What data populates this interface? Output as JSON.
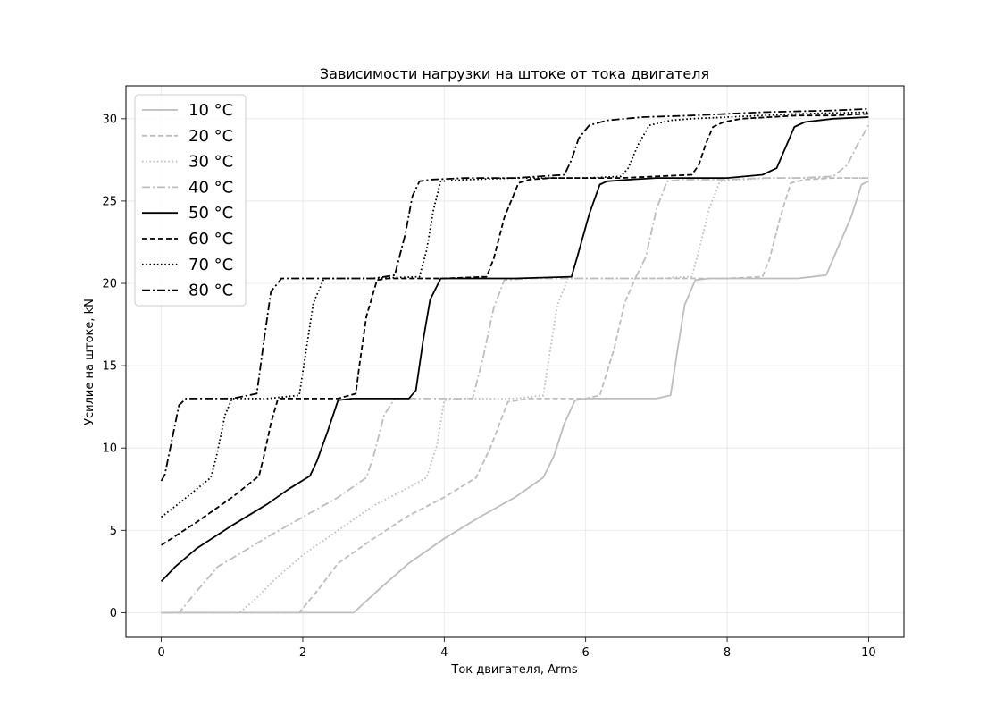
{
  "chart_data": {
    "type": "line",
    "title": "Зависимости нагрузки на штоке от тока двигателя",
    "xlabel": "Ток двигателя, Arms",
    "ylabel": "Усилие на штоке, kN",
    "xlim": [
      -0.5,
      10.5
    ],
    "ylim": [
      -1.5,
      32
    ],
    "xticks": [
      0,
      2,
      4,
      6,
      8,
      10
    ],
    "yticks": [
      0,
      5,
      10,
      15,
      20,
      25,
      30
    ],
    "grid": true,
    "legend_position": "upper-left",
    "series": [
      {
        "name": "10 °C",
        "color": "#bdbdbd",
        "dash": "solid",
        "x": [
          0,
          2.72,
          3.1,
          3.5,
          4.0,
          4.5,
          5.0,
          5.4,
          5.55,
          5.7,
          5.85,
          6.0,
          6.5,
          7.0,
          7.2,
          7.3,
          7.4,
          7.55,
          7.75,
          8.0,
          8.5,
          9.0,
          9.4,
          9.6,
          9.75,
          9.9,
          10.0
        ],
        "y": [
          0,
          0,
          1.5,
          3.0,
          4.5,
          5.8,
          7.0,
          8.2,
          9.5,
          11.5,
          12.9,
          13.0,
          13.0,
          13.0,
          13.2,
          16.0,
          18.7,
          20.2,
          20.3,
          20.3,
          20.3,
          20.3,
          20.5,
          22.5,
          24.0,
          26.0,
          26.2
        ]
      },
      {
        "name": "20 °C",
        "color": "#bdbdbd",
        "dash": "dashed",
        "x": [
          0,
          1.95,
          2.2,
          2.5,
          3.0,
          3.5,
          4.0,
          4.45,
          4.65,
          4.9,
          5.2,
          5.5,
          6.0,
          6.2,
          6.4,
          6.55,
          6.7,
          7.0,
          7.5,
          8.0,
          8.5,
          8.6,
          8.75,
          8.9,
          9.1,
          9.5,
          9.8,
          10.0
        ],
        "y": [
          0,
          0,
          1.3,
          3.0,
          4.5,
          5.9,
          7.0,
          8.2,
          10.0,
          12.8,
          13.0,
          13.0,
          13.0,
          13.2,
          16.0,
          18.8,
          20.3,
          20.3,
          20.3,
          20.3,
          20.4,
          21.5,
          24.0,
          26.1,
          26.3,
          26.4,
          26.4,
          26.4
        ]
      },
      {
        "name": "30 °C",
        "color": "#bdbdbd",
        "dash": "dotted",
        "x": [
          0,
          1.1,
          1.3,
          1.6,
          2.0,
          2.5,
          3.0,
          3.5,
          3.75,
          3.9,
          4.0,
          4.3,
          5.0,
          5.4,
          5.5,
          5.6,
          5.75,
          6.0,
          6.5,
          7.0,
          7.5,
          7.6,
          7.75,
          7.9,
          8.2,
          8.6,
          9.0,
          9.5,
          10.0
        ],
        "y": [
          0,
          0,
          0.7,
          2.0,
          3.5,
          5.0,
          6.5,
          7.6,
          8.2,
          10.2,
          12.9,
          13.0,
          13.0,
          13.2,
          16.0,
          18.7,
          20.3,
          20.3,
          20.3,
          20.3,
          20.4,
          22.0,
          24.6,
          26.2,
          26.3,
          26.4,
          26.4,
          26.4,
          26.4
        ]
      },
      {
        "name": "40 °C",
        "color": "#bdbdbd",
        "dash": "dashdot",
        "x": [
          0,
          0.25,
          0.5,
          0.8,
          1.0,
          1.5,
          2.0,
          2.5,
          2.9,
          3.0,
          3.15,
          3.3,
          3.6,
          4.4,
          4.55,
          4.7,
          4.85,
          5.2,
          6.0,
          6.7,
          6.85,
          7.0,
          7.15,
          7.35,
          7.6,
          8.0,
          8.5,
          9.0,
          9.5,
          9.7,
          9.85,
          10.0
        ],
        "y": [
          0,
          0,
          1.3,
          2.8,
          3.3,
          4.6,
          5.8,
          7.0,
          8.2,
          9.5,
          12.0,
          13.0,
          13.0,
          13.0,
          15.5,
          18.5,
          20.2,
          20.3,
          20.3,
          20.3,
          21.6,
          24.5,
          26.2,
          26.3,
          26.3,
          26.3,
          26.4,
          26.4,
          26.5,
          27.2,
          28.5,
          29.6
        ]
      },
      {
        "name": "50 °C",
        "color": "#000000",
        "dash": "solid",
        "x": [
          0,
          0.2,
          0.5,
          1.0,
          1.5,
          1.8,
          2.1,
          2.2,
          2.35,
          2.5,
          2.7,
          3.0,
          3.5,
          3.6,
          3.7,
          3.8,
          3.95,
          4.2,
          5.0,
          5.8,
          5.9,
          6.05,
          6.2,
          6.3,
          6.6,
          7.0,
          7.5,
          8.0,
          8.5,
          8.7,
          8.8,
          8.95,
          9.1,
          9.5,
          10.0
        ],
        "y": [
          1.9,
          2.8,
          3.9,
          5.3,
          6.6,
          7.5,
          8.3,
          9.2,
          11.0,
          12.9,
          13.0,
          13.0,
          13.0,
          13.5,
          16.5,
          19.0,
          20.3,
          20.3,
          20.3,
          20.4,
          21.9,
          24.2,
          26.0,
          26.2,
          26.3,
          26.4,
          26.4,
          26.4,
          26.6,
          27.0,
          28.0,
          29.5,
          29.8,
          30.0,
          30.1
        ]
      },
      {
        "name": "60 °C",
        "color": "#000000",
        "dash": "dashed",
        "x": [
          0,
          0.5,
          1.0,
          1.38,
          1.45,
          1.55,
          1.65,
          1.8,
          2.0,
          2.5,
          2.75,
          2.8,
          2.9,
          3.05,
          3.2,
          3.5,
          4.0,
          4.6,
          4.7,
          4.85,
          5.05,
          5.2,
          5.5,
          6.0,
          6.5,
          7.0,
          7.5,
          7.6,
          7.7,
          7.8,
          7.95,
          8.2,
          8.6,
          9.0,
          9.5,
          10.0
        ],
        "y": [
          4.1,
          5.5,
          7.0,
          8.3,
          9.5,
          11.5,
          13.0,
          13.0,
          13.0,
          13.0,
          13.3,
          15.0,
          18.0,
          20.2,
          20.3,
          20.3,
          20.3,
          20.4,
          21.5,
          24.0,
          26.1,
          26.3,
          26.4,
          26.4,
          26.4,
          26.5,
          26.6,
          27.2,
          28.5,
          29.5,
          29.8,
          30.0,
          30.1,
          30.2,
          30.2,
          30.3
        ]
      },
      {
        "name": "70 °C",
        "color": "#000000",
        "dash": "dotted",
        "x": [
          0,
          0.3,
          0.7,
          0.78,
          0.9,
          1.0,
          1.2,
          1.5,
          1.95,
          2.05,
          2.15,
          2.3,
          2.5,
          3.0,
          3.65,
          3.75,
          3.85,
          3.95,
          4.3,
          5.0,
          6.0,
          6.5,
          6.6,
          6.75,
          6.9,
          7.2,
          7.5,
          8.0,
          9.0,
          10.0
        ],
        "y": [
          5.8,
          6.8,
          8.2,
          9.5,
          12.0,
          13.0,
          13.0,
          13.0,
          13.2,
          16.0,
          18.8,
          20.3,
          20.3,
          20.3,
          20.4,
          22.0,
          24.5,
          26.2,
          26.3,
          26.4,
          26.4,
          26.5,
          27.0,
          28.5,
          29.6,
          29.9,
          30.0,
          30.1,
          30.3,
          30.4
        ]
      },
      {
        "name": "80 °C",
        "color": "#000000",
        "dash": "dashdot",
        "x": [
          0,
          0.05,
          0.15,
          0.25,
          0.35,
          0.5,
          1.0,
          1.35,
          1.45,
          1.55,
          1.7,
          2.0,
          2.5,
          3.0,
          3.3,
          3.45,
          3.55,
          3.65,
          3.8,
          4.3,
          5.0,
          5.7,
          5.8,
          5.9,
          6.05,
          6.3,
          6.8,
          7.5,
          8.5,
          9.5,
          10.0
        ],
        "y": [
          8.0,
          8.4,
          10.5,
          12.6,
          13.0,
          13.0,
          13.0,
          13.3,
          16.5,
          19.5,
          20.3,
          20.3,
          20.3,
          20.3,
          20.5,
          23.0,
          25.3,
          26.2,
          26.3,
          26.4,
          26.4,
          26.6,
          27.5,
          28.8,
          29.6,
          29.9,
          30.1,
          30.2,
          30.4,
          30.5,
          30.6
        ]
      }
    ]
  }
}
